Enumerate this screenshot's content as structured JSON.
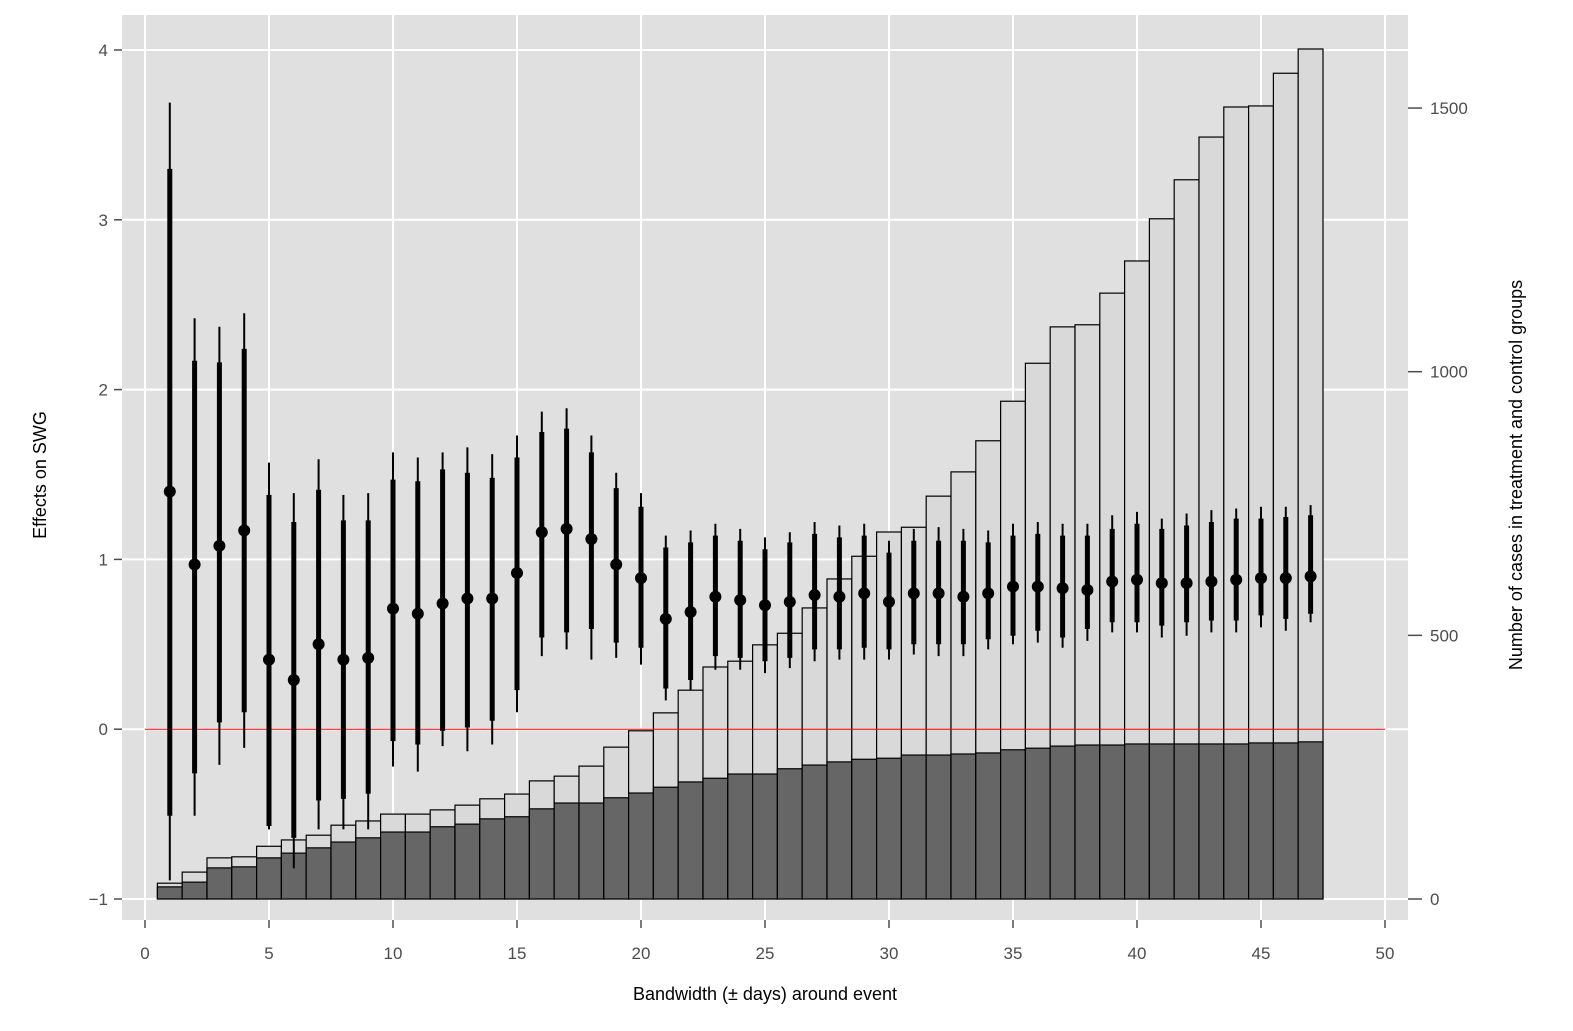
{
  "chart_data": {
    "type": "bar+errorbar",
    "title": "",
    "xlabel": "Bandwidth (± days) around event",
    "ylabel": "Effects on SWG",
    "y2label": "Number of cases in treatment and control groups",
    "xlim": [
      0,
      50
    ],
    "ylim": [
      -1,
      4
    ],
    "y2lim": [
      0,
      1612
    ],
    "xticks": [
      "0",
      "5",
      "10",
      "15",
      "20",
      "25",
      "30",
      "35",
      "40",
      "45",
      "50"
    ],
    "yticks": [
      "−1",
      "0",
      "1",
      "2",
      "3",
      "4"
    ],
    "y2ticks": [
      "0",
      "500",
      "1000",
      "1500"
    ],
    "grid": true,
    "reference_line": {
      "y": 0,
      "color": "#ff0000"
    },
    "colors": {
      "panel": "#e0e0e0",
      "total_bar": "#d9d9d9",
      "treated_bar": "#666666",
      "point": "#000000"
    },
    "x": [
      1,
      2,
      3,
      4,
      5,
      6,
      7,
      8,
      9,
      10,
      11,
      12,
      13,
      14,
      15,
      16,
      17,
      18,
      19,
      20,
      21,
      22,
      23,
      24,
      25,
      26,
      27,
      28,
      29,
      30,
      31,
      32,
      33,
      34,
      35,
      36,
      37,
      38,
      39,
      40,
      41,
      42,
      43,
      44,
      45,
      46,
      47
    ],
    "estimate": [
      1.4,
      0.97,
      1.08,
      1.17,
      0.41,
      0.29,
      0.5,
      0.41,
      0.42,
      0.71,
      0.68,
      0.74,
      0.77,
      0.77,
      0.92,
      1.16,
      1.18,
      1.12,
      0.97,
      0.89,
      0.65,
      0.69,
      0.78,
      0.76,
      0.73,
      0.75,
      0.79,
      0.78,
      0.8,
      0.75,
      0.8,
      0.8,
      0.78,
      0.8,
      0.84,
      0.84,
      0.83,
      0.82,
      0.87,
      0.88,
      0.86,
      0.86,
      0.87,
      0.88,
      0.89,
      0.89,
      0.9
    ],
    "ci_outer_high": [
      3.69,
      2.42,
      2.37,
      2.45,
      1.57,
      1.39,
      1.59,
      1.38,
      1.39,
      1.63,
      1.6,
      1.63,
      1.66,
      1.62,
      1.73,
      1.87,
      1.89,
      1.73,
      1.51,
      1.39,
      1.14,
      1.17,
      1.21,
      1.18,
      1.13,
      1.16,
      1.22,
      1.2,
      1.21,
      1.11,
      1.18,
      1.19,
      1.18,
      1.17,
      1.21,
      1.22,
      1.21,
      1.21,
      1.26,
      1.28,
      1.24,
      1.27,
      1.29,
      1.3,
      1.31,
      1.31,
      1.32
    ],
    "ci_outer_low": [
      -0.89,
      -0.51,
      -0.21,
      -0.11,
      -0.59,
      -0.82,
      -0.59,
      -0.59,
      -0.59,
      -0.22,
      -0.25,
      -0.1,
      -0.13,
      -0.09,
      0.1,
      0.43,
      0.47,
      0.41,
      0.42,
      0.38,
      0.17,
      0.23,
      0.35,
      0.35,
      0.33,
      0.36,
      0.4,
      0.41,
      0.41,
      0.41,
      0.44,
      0.43,
      0.43,
      0.47,
      0.5,
      0.51,
      0.48,
      0.52,
      0.57,
      0.57,
      0.54,
      0.55,
      0.57,
      0.57,
      0.6,
      0.58,
      0.63
    ],
    "ci_inner_high": [
      3.3,
      2.17,
      2.16,
      2.24,
      1.38,
      1.22,
      1.41,
      1.23,
      1.23,
      1.47,
      1.46,
      1.53,
      1.51,
      1.48,
      1.6,
      1.75,
      1.77,
      1.63,
      1.42,
      1.31,
      1.07,
      1.1,
      1.14,
      1.11,
      1.06,
      1.1,
      1.15,
      1.13,
      1.14,
      1.04,
      1.11,
      1.11,
      1.11,
      1.1,
      1.14,
      1.15,
      1.14,
      1.14,
      1.18,
      1.21,
      1.18,
      1.2,
      1.22,
      1.24,
      1.24,
      1.25,
      1.26
    ],
    "ci_inner_low": [
      -0.51,
      -0.26,
      0.04,
      0.1,
      -0.57,
      -0.64,
      -0.42,
      -0.41,
      -0.38,
      -0.07,
      -0.09,
      -0.01,
      0.01,
      0.05,
      0.23,
      0.54,
      0.57,
      0.59,
      0.51,
      0.48,
      0.24,
      0.29,
      0.43,
      0.42,
      0.4,
      0.42,
      0.47,
      0.47,
      0.48,
      0.47,
      0.5,
      0.5,
      0.5,
      0.53,
      0.55,
      0.58,
      0.54,
      0.59,
      0.63,
      0.63,
      0.61,
      0.63,
      0.64,
      0.64,
      0.67,
      0.65,
      0.68
    ],
    "cases_total": [
      30,
      51,
      78,
      80,
      100,
      112,
      121,
      140,
      148,
      161,
      161,
      169,
      178,
      190,
      199,
      224,
      233,
      252,
      288,
      319,
      353,
      396,
      440,
      451,
      482,
      504,
      552,
      607,
      650,
      696,
      705,
      764,
      810,
      869,
      944,
      1016,
      1085,
      1089,
      1149,
      1210,
      1290,
      1364,
      1445,
      1502,
      1504,
      1566,
      1612
    ],
    "cases_treated": [
      23,
      32,
      59,
      61,
      78,
      87,
      97,
      108,
      116,
      127,
      127,
      137,
      142,
      152,
      156,
      171,
      182,
      182,
      192,
      201,
      212,
      222,
      229,
      237,
      237,
      247,
      254,
      260,
      265,
      267,
      273,
      273,
      275,
      277,
      283,
      286,
      290,
      292,
      292,
      294,
      294,
      294,
      294,
      294,
      296,
      296,
      298
    ]
  }
}
